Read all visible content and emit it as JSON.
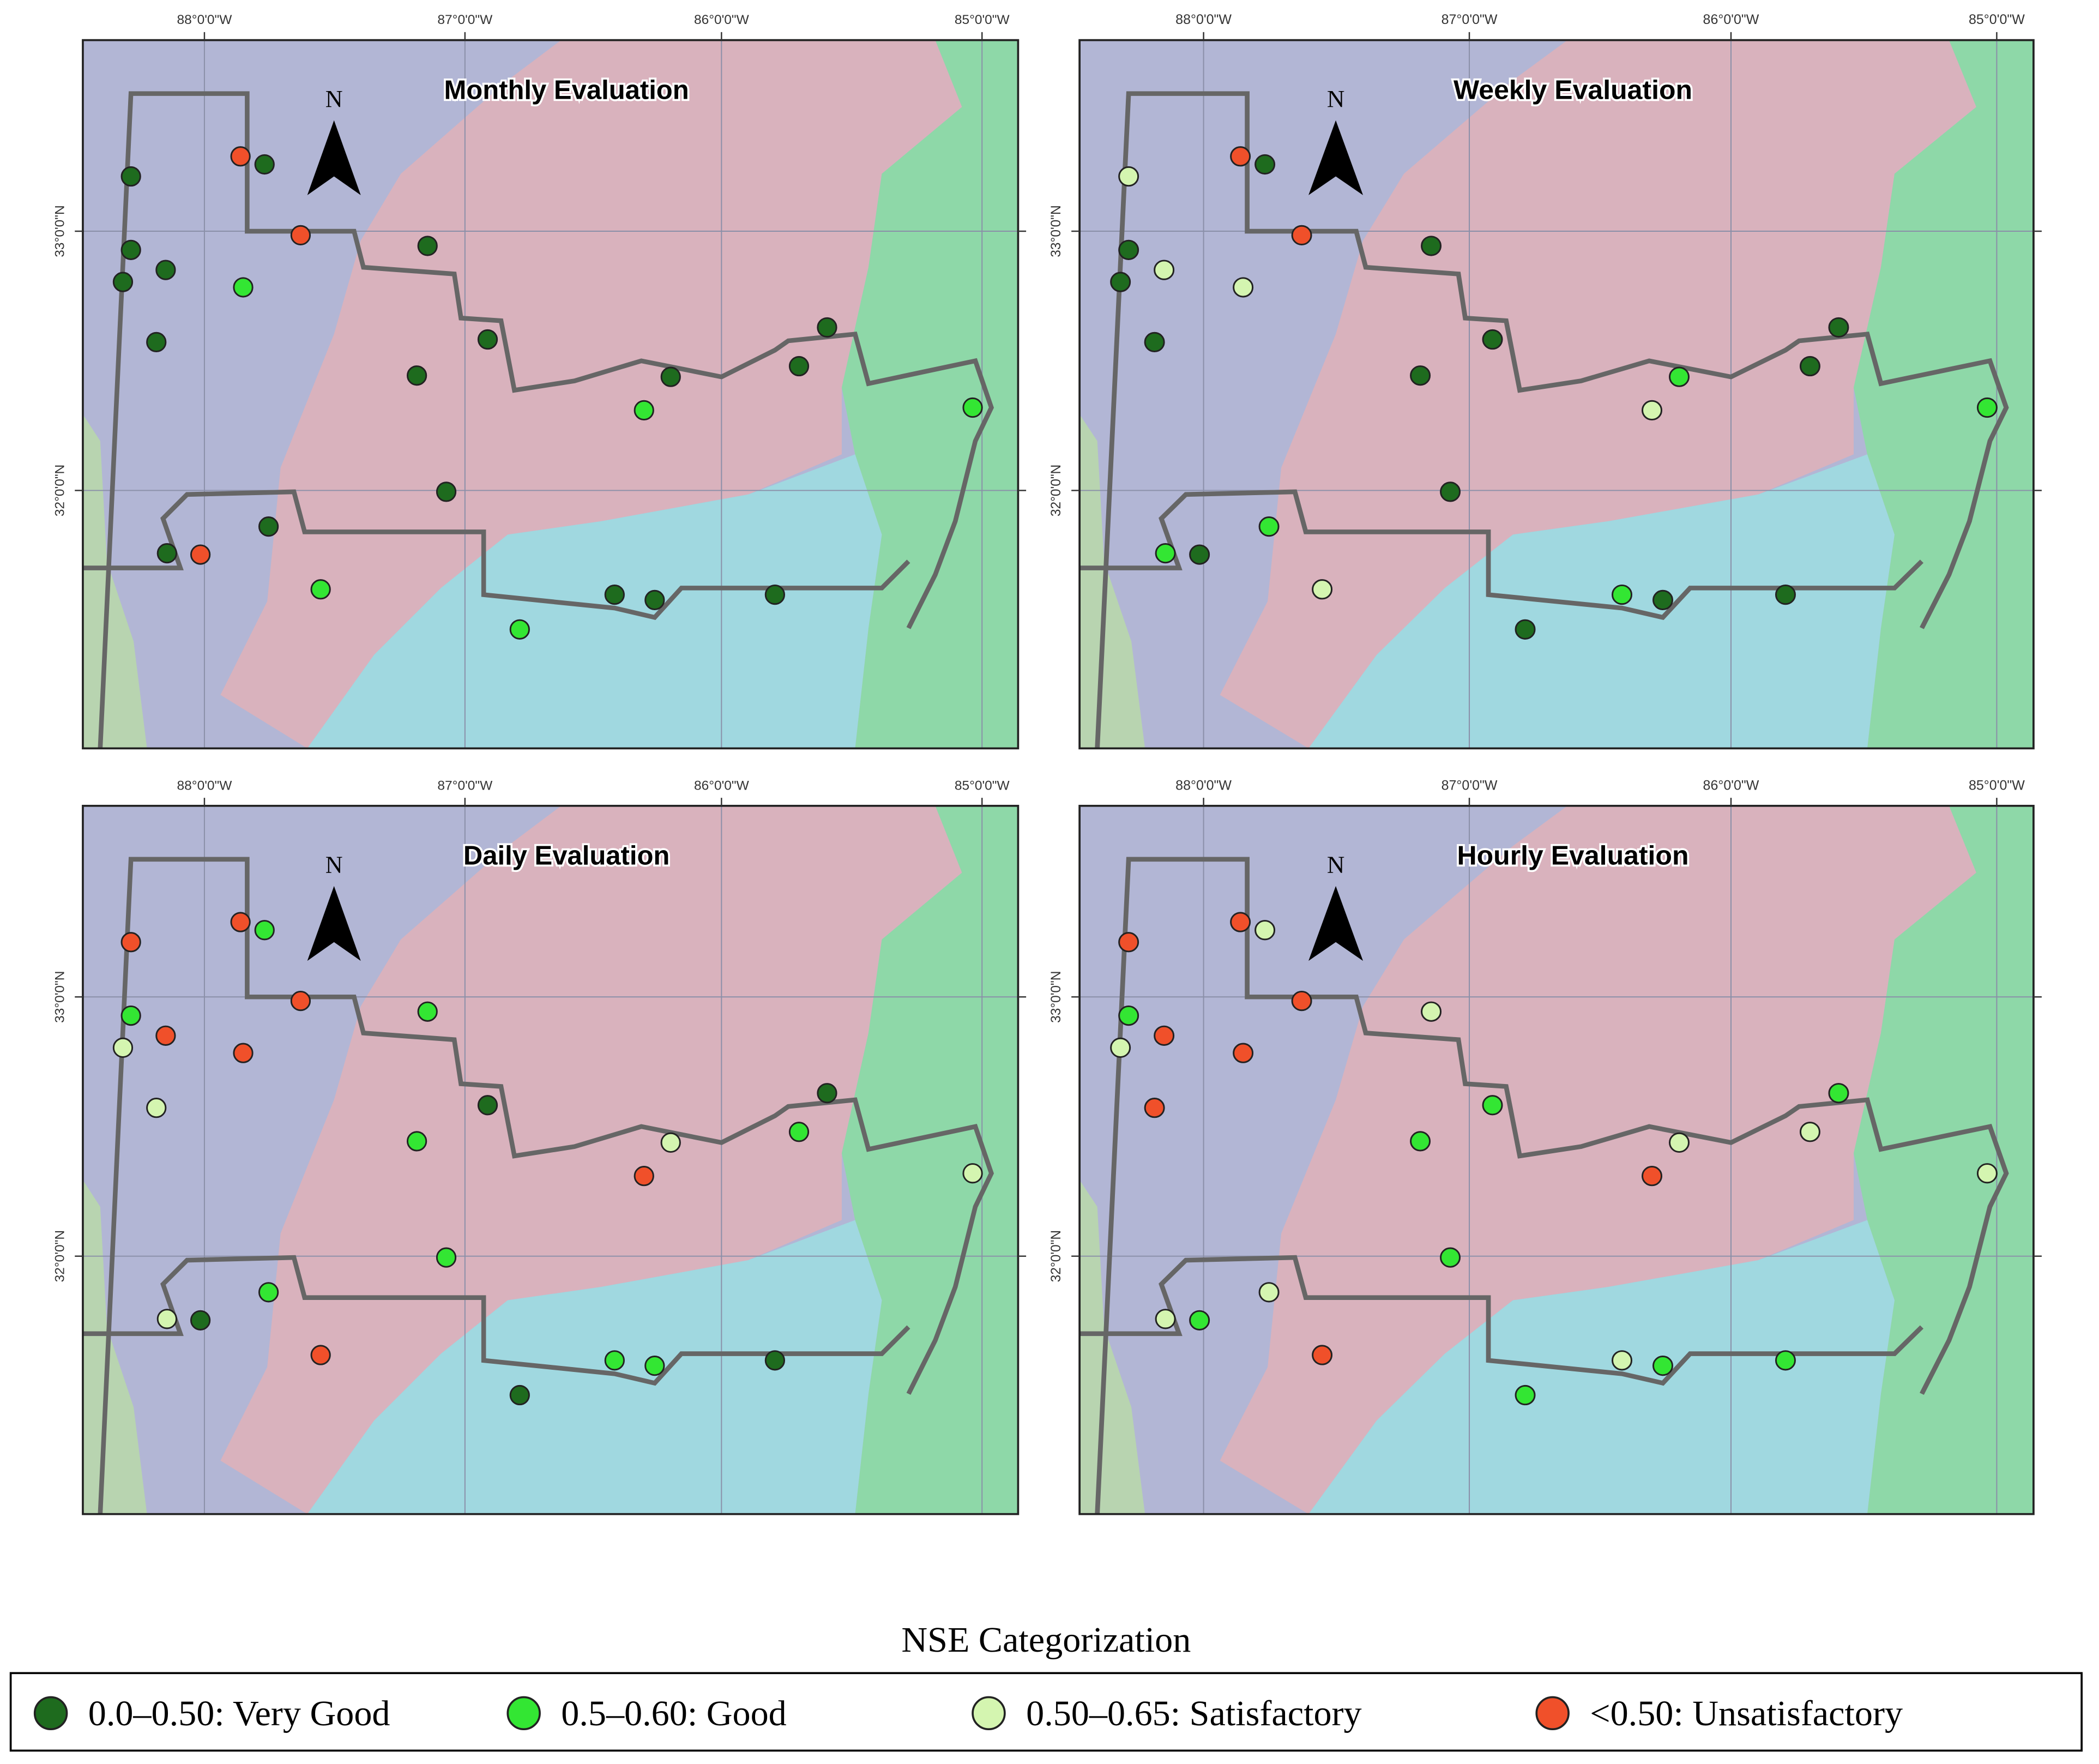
{
  "map": {
    "lon_ticks": [
      "88°0'0\"W",
      "87°0'0\"W",
      "86°0'0\"W",
      "85°0'0\"W"
    ],
    "lat_ticks": [
      "33°0'0\"N",
      "32°0'0\"N"
    ],
    "north": "N",
    "panels": [
      {
        "title": "Monthly Evaluation",
        "stations": [
          0,
          3,
          0,
          0,
          0,
          0,
          3,
          1,
          0,
          0,
          0,
          0,
          0,
          1,
          0,
          0,
          1,
          0,
          0,
          0,
          3,
          1,
          0,
          0,
          0,
          1
        ]
      },
      {
        "title": "Weekly Evaluation",
        "stations": [
          2,
          3,
          0,
          0,
          2,
          0,
          3,
          2,
          0,
          0,
          0,
          0,
          1,
          2,
          0,
          0,
          1,
          0,
          1,
          1,
          0,
          2,
          1,
          0,
          0,
          0
        ]
      },
      {
        "title": "Daily Evaluation",
        "stations": [
          3,
          3,
          1,
          1,
          3,
          2,
          3,
          3,
          2,
          1,
          0,
          1,
          2,
          3,
          0,
          1,
          2,
          1,
          1,
          2,
          0,
          3,
          1,
          1,
          0,
          0
        ]
      },
      {
        "title": "Hourly Evaluation",
        "stations": [
          3,
          3,
          2,
          1,
          3,
          2,
          3,
          3,
          3,
          2,
          1,
          1,
          2,
          3,
          1,
          2,
          2,
          1,
          2,
          2,
          1,
          3,
          2,
          1,
          1,
          1
        ]
      }
    ],
    "legend": {
      "title": "NSE Categorization",
      "items": [
        {
          "label": "0.0–0.50: Very Good",
          "color": "#1e6b1e"
        },
        {
          "label": "0.5–0.60: Good",
          "color": "#33e633"
        },
        {
          "label": "0.50–0.65: Satisfactory",
          "color": "#d4f5b0"
        },
        {
          "label": "<0.50: Unsatisfactory",
          "color": "#f0502a"
        }
      ]
    }
  }
}
